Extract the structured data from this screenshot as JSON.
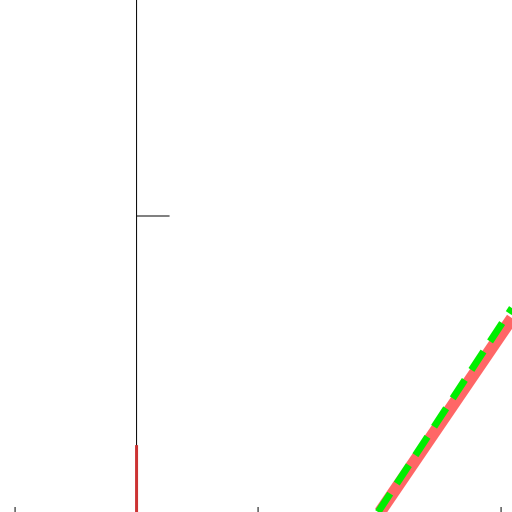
{
  "chart_data": {
    "type": "line",
    "xlim": [
      -0.062,
      2.045
    ],
    "ylim": [
      0,
      1.73
    ],
    "xticks": [
      0,
      1,
      2
    ],
    "yticks": [
      1
    ],
    "y_axis_at": 0.5,
    "series": [
      {
        "color": "#ff6666",
        "style": "solid",
        "x": [
          1.502,
          2.045
        ],
        "values": [
          0,
          0.655
        ]
      },
      {
        "color": "#00ee00",
        "style": "dashed",
        "x": [
          1.494,
          2.045
        ],
        "values": [
          0,
          0.689
        ]
      },
      {
        "color": "#cc3333",
        "style": "solid",
        "x": [
          0.5,
          0.5
        ],
        "values": [
          0,
          0.226
        ]
      }
    ]
  }
}
